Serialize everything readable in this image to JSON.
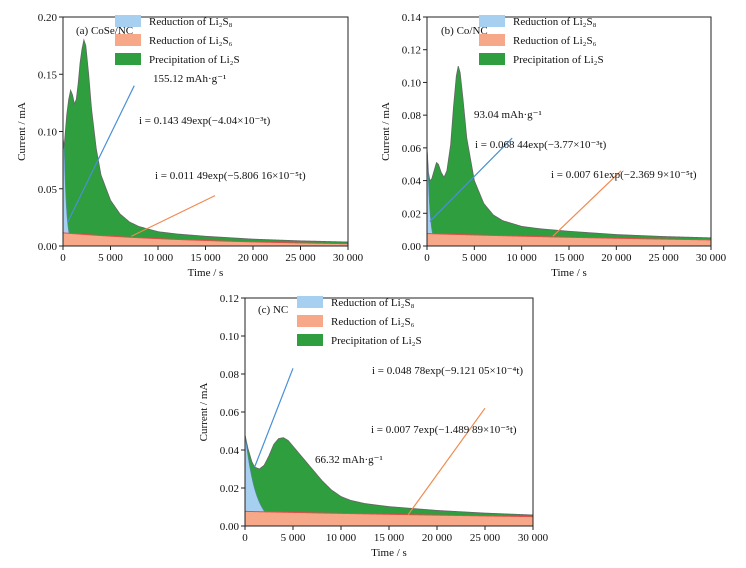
{
  "figure": {
    "legend": {
      "reduction_s8": "Reduction of Li₂S₈",
      "reduction_s6": "Reduction of Li₂S₆",
      "precipitation": "Precipitation of Li₂S"
    },
    "colors": {
      "s8": "#a7d0f0",
      "s6": "#f7a888",
      "li2s": "#2e9e3e",
      "blue_text": "#4a90d6",
      "orange_text": "#f08a50",
      "outline": "#666666",
      "s6_edge": "#e0504a"
    }
  },
  "chart_data": [
    {
      "type": "area",
      "panel": "(a) CoSe/NC",
      "xlabel": "Time / s",
      "ylabel": "Current / mA",
      "xlim": [
        0,
        30000
      ],
      "ylim": [
        0,
        0.2
      ],
      "xticks": [
        "0",
        "5 000",
        "10 000",
        "15 000",
        "20 000",
        "25 000",
        "30 000"
      ],
      "yticks": [
        "0.00",
        "0.05",
        "0.10",
        "0.15",
        "0.20"
      ],
      "capacity": "155.12 mAh·g⁻¹",
      "fit_s8": "i = 0.143 49exp(−4.04×10⁻³t)",
      "fit_s6": "i = 0.011 49exp(−5.806 16×10⁻⁵t)",
      "s8_params": {
        "a": 0.14349,
        "b": 0.00404
      },
      "s6_params": {
        "a": 0.01149,
        "b": 5.80616e-05
      },
      "total_curve": [
        [
          0,
          0.095
        ],
        [
          100,
          0.085
        ],
        [
          200,
          0.095
        ],
        [
          400,
          0.115
        ],
        [
          600,
          0.128
        ],
        [
          800,
          0.136
        ],
        [
          1000,
          0.132
        ],
        [
          1200,
          0.124
        ],
        [
          1400,
          0.128
        ],
        [
          1600,
          0.142
        ],
        [
          1800,
          0.16
        ],
        [
          2000,
          0.172
        ],
        [
          2200,
          0.18
        ],
        [
          2400,
          0.175
        ],
        [
          2700,
          0.15
        ],
        [
          3000,
          0.12
        ],
        [
          3500,
          0.085
        ],
        [
          4000,
          0.062
        ],
        [
          5000,
          0.04
        ],
        [
          6000,
          0.028
        ],
        [
          7000,
          0.021
        ],
        [
          8000,
          0.017
        ],
        [
          10000,
          0.0125
        ],
        [
          12000,
          0.0105
        ],
        [
          15000,
          0.0085
        ],
        [
          20000,
          0.006
        ],
        [
          25000,
          0.0045
        ],
        [
          30000,
          0.0035
        ]
      ]
    },
    {
      "type": "area",
      "panel": "(b) Co/NC",
      "xlabel": "Time / s",
      "ylabel": "Current / mA",
      "xlim": [
        0,
        30000
      ],
      "ylim": [
        0,
        0.14
      ],
      "xticks": [
        "0",
        "5 000",
        "10 000",
        "15 000",
        "20 000",
        "25 000",
        "30 000"
      ],
      "yticks": [
        "0.00",
        "0.02",
        "0.04",
        "0.06",
        "0.08",
        "0.10",
        "0.12",
        "0.14"
      ],
      "capacity": "93.04 mAh·g⁻¹",
      "fit_s8": "i = 0.068 44exp(−3.77×10⁻³t)",
      "fit_s6": "i = 0.007 61exp(−2.369 9×10⁻⁵t)",
      "s8_params": {
        "a": 0.06844,
        "b": 0.00377
      },
      "s6_params": {
        "a": 0.00761,
        "b": 2.3699e-05
      },
      "total_curve": [
        [
          0,
          0.06
        ],
        [
          150,
          0.045
        ],
        [
          300,
          0.04
        ],
        [
          500,
          0.041
        ],
        [
          800,
          0.047
        ],
        [
          1000,
          0.051
        ],
        [
          1200,
          0.05
        ],
        [
          1500,
          0.045
        ],
        [
          1800,
          0.042
        ],
        [
          2100,
          0.046
        ],
        [
          2500,
          0.062
        ],
        [
          2800,
          0.085
        ],
        [
          3100,
          0.104
        ],
        [
          3300,
          0.11
        ],
        [
          3500,
          0.106
        ],
        [
          3800,
          0.09
        ],
        [
          4200,
          0.066
        ],
        [
          5000,
          0.04
        ],
        [
          6000,
          0.026
        ],
        [
          7000,
          0.019
        ],
        [
          8000,
          0.0155
        ],
        [
          10000,
          0.012
        ],
        [
          12000,
          0.0105
        ],
        [
          15000,
          0.009
        ],
        [
          20000,
          0.007
        ],
        [
          25000,
          0.0058
        ],
        [
          30000,
          0.005
        ]
      ]
    },
    {
      "type": "area",
      "panel": "(c) NC",
      "xlabel": "Time / s",
      "ylabel": "Current / mA",
      "xlim": [
        0,
        30000
      ],
      "ylim": [
        0,
        0.12
      ],
      "xticks": [
        "0",
        "5 000",
        "10 000",
        "15 000",
        "20 000",
        "25 000",
        "30 000"
      ],
      "yticks": [
        "0.00",
        "0.02",
        "0.04",
        "0.06",
        "0.08",
        "0.10",
        "0.12"
      ],
      "capacity": "66.32 mAh·g⁻¹",
      "fit_s8": "i = 0.048 78exp(−9.121 05×10⁻⁴t)",
      "fit_s6": "i = 0.007 7exp(−1.489 89×10⁻⁵t)",
      "s8_params": {
        "a": 0.04878,
        "b": 0.000912105
      },
      "s6_params": {
        "a": 0.0077,
        "b": 1.48989e-05
      },
      "total_curve": [
        [
          0,
          0.048
        ],
        [
          300,
          0.041
        ],
        [
          700,
          0.034
        ],
        [
          1000,
          0.031
        ],
        [
          1500,
          0.03
        ],
        [
          2000,
          0.032
        ],
        [
          2500,
          0.037
        ],
        [
          3000,
          0.043
        ],
        [
          3500,
          0.046
        ],
        [
          4000,
          0.0465
        ],
        [
          4500,
          0.045
        ],
        [
          5000,
          0.042
        ],
        [
          6000,
          0.036
        ],
        [
          7000,
          0.03
        ],
        [
          8000,
          0.024
        ],
        [
          9000,
          0.019
        ],
        [
          10000,
          0.0155
        ],
        [
          11000,
          0.0135
        ],
        [
          12500,
          0.0118
        ],
        [
          15000,
          0.0102
        ],
        [
          20000,
          0.0082
        ],
        [
          25000,
          0.0068
        ],
        [
          30000,
          0.0058
        ]
      ]
    }
  ]
}
